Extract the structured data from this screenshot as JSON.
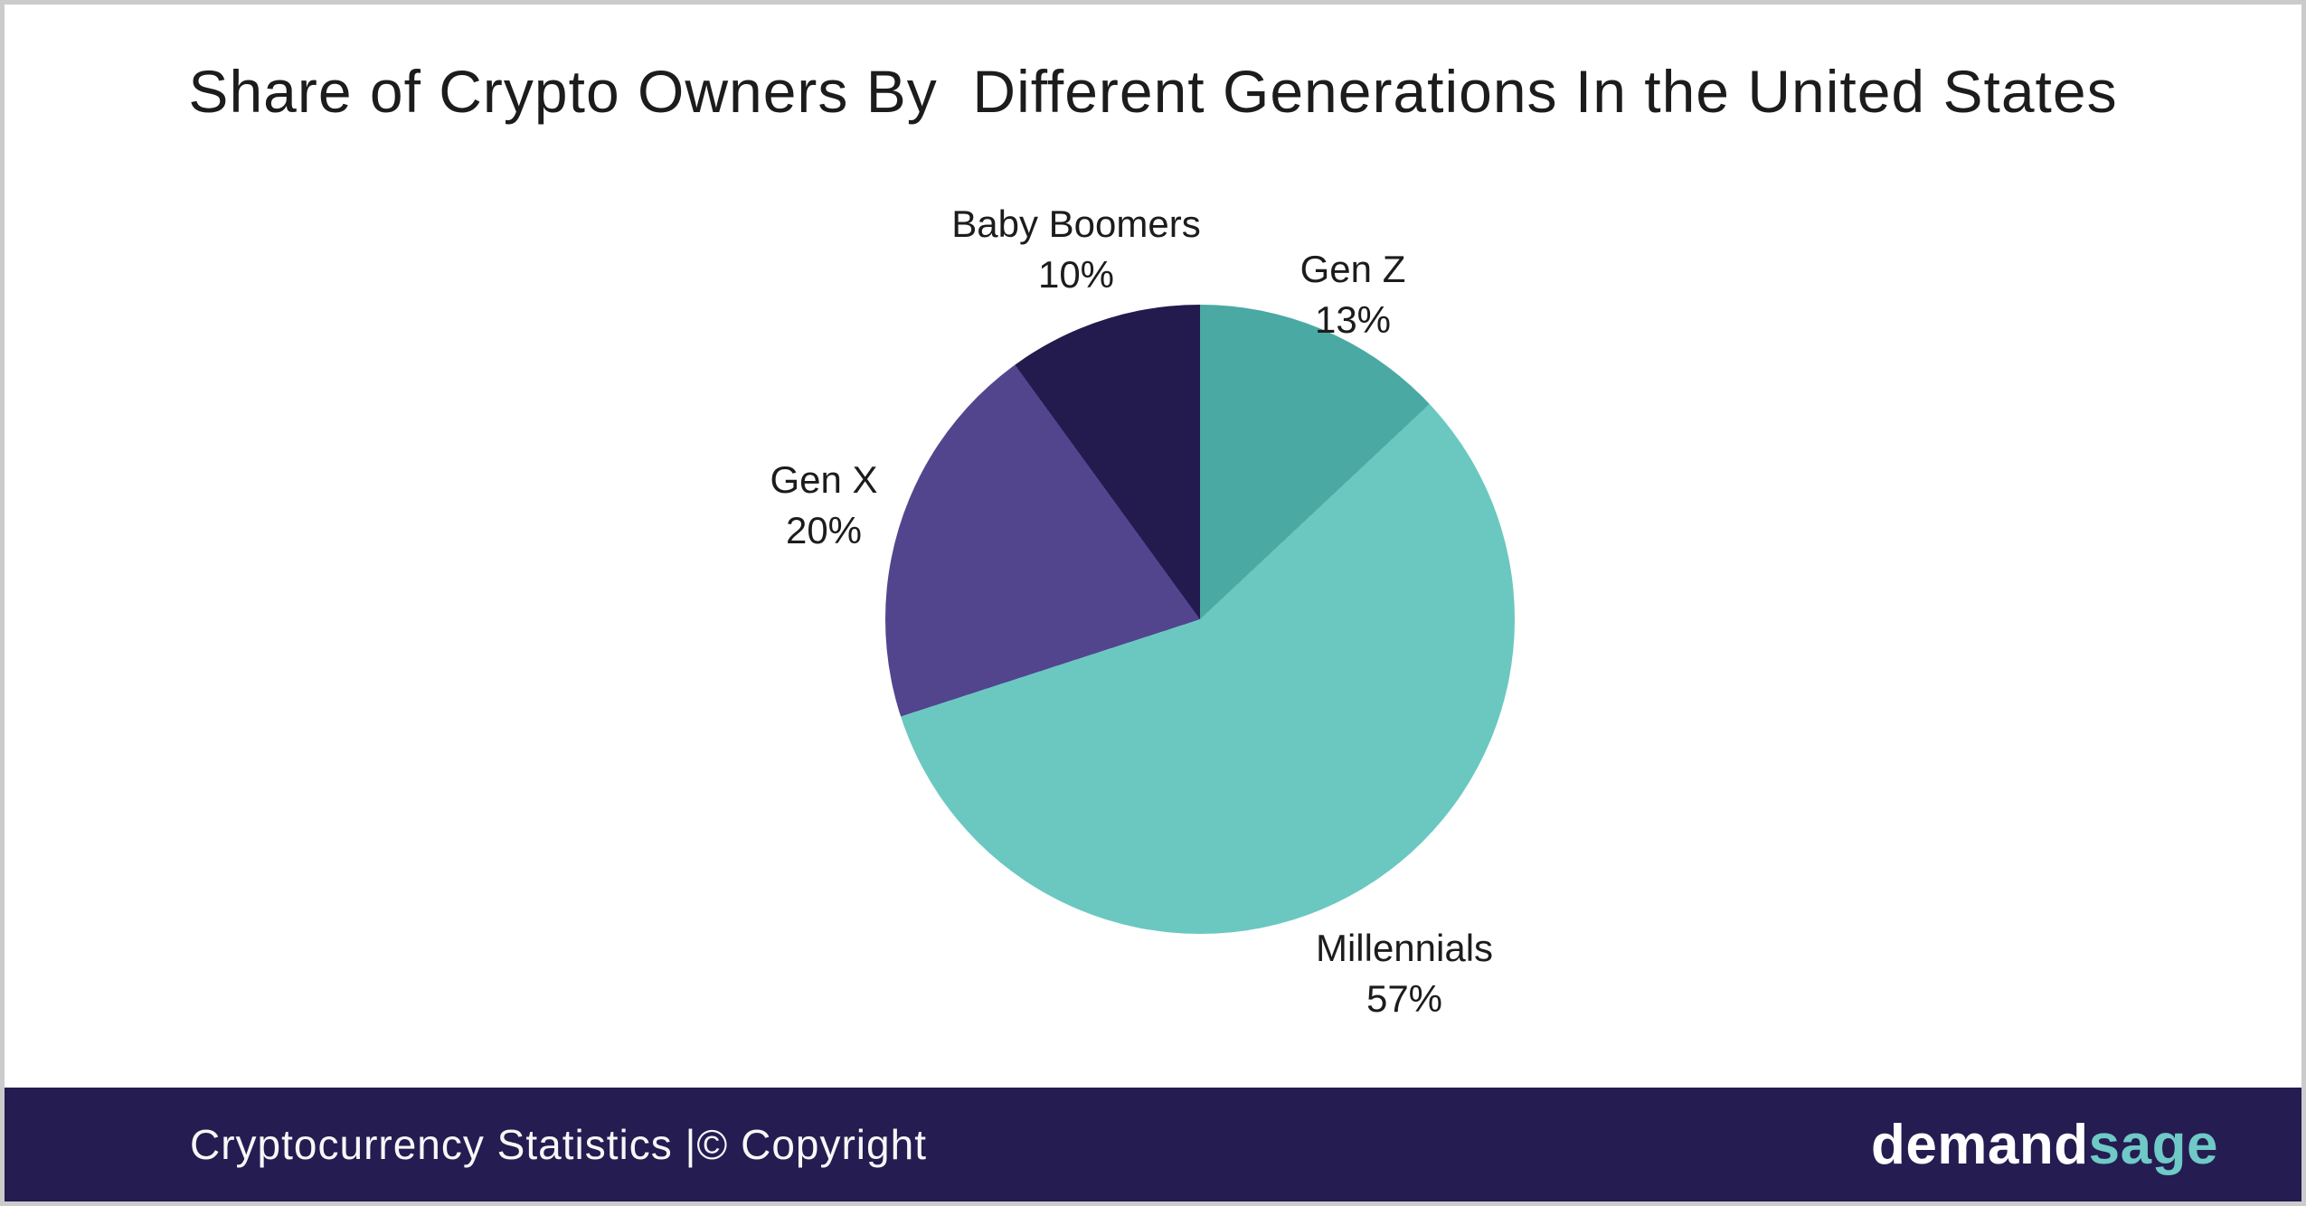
{
  "page": {
    "background": "#ffffff",
    "frame_border_color": "#cbcbcb"
  },
  "chart_data": {
    "type": "pie",
    "title": "Share of Crypto Owners By  Different Generations In the United States",
    "start_angle_deg": 0,
    "direction": "clockwise",
    "legend": "none (direct outside labels with percentages)",
    "text_color": "#1c1c1c",
    "segments": [
      {
        "label": "Gen Z",
        "value": 13,
        "pct_label": "13%",
        "color": "#4aa9a3"
      },
      {
        "label": "Millennials",
        "value": 57,
        "pct_label": "57%",
        "color": "#6ac8c0"
      },
      {
        "label": "Gen X",
        "value": 20,
        "pct_label": "20%",
        "color": "#52458e"
      },
      {
        "label": "Baby Boomers",
        "value": 10,
        "pct_label": "10%",
        "color": "#231a4e"
      }
    ]
  },
  "footer": {
    "caption": "Cryptocurrency Statistics |© Copyright",
    "bg_color": "#251c52",
    "text_color": "#f7f7f7",
    "brand": {
      "part1": "demand",
      "part2": "sage",
      "part1_color": "#ffffff",
      "part2_color": "#6fc9c6"
    }
  }
}
